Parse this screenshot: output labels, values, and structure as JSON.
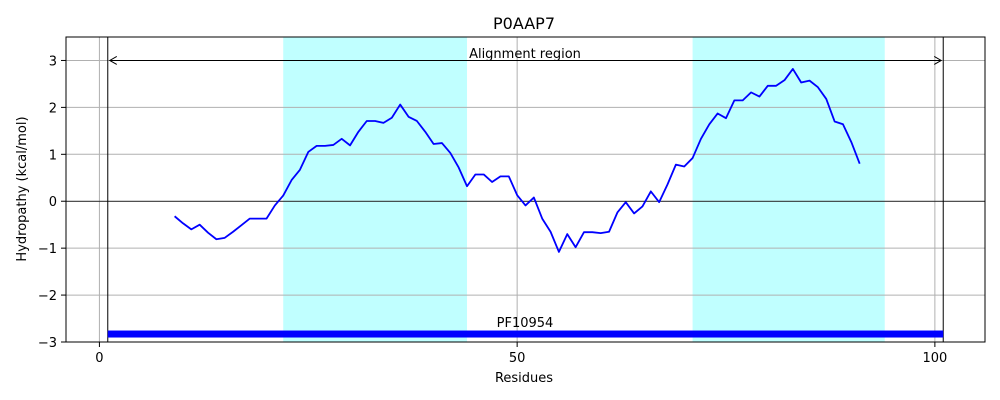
{
  "chart_data": {
    "type": "line",
    "title": "P0AAP7",
    "xlabel": "Residues",
    "ylabel": "Hydropathy (kcal/mol)",
    "xlim": [
      -4,
      106
    ],
    "ylim": [
      -3,
      3.5
    ],
    "x_ticks": [
      0,
      50,
      100
    ],
    "y_ticks": [
      -3,
      -2,
      -1,
      0,
      1,
      2,
      3
    ],
    "grid": true,
    "colors": {
      "line": "#0000ff",
      "shade": "#c0ffff",
      "domain_bar": "#0000ff",
      "zero_line": "#000000",
      "grid": "#b0b0b0"
    },
    "shaded_regions": [
      [
        22,
        44
      ],
      [
        71,
        94
      ]
    ],
    "alignment_region": {
      "label": "Alignment region",
      "start": 1,
      "end": 101,
      "y": 3
    },
    "domain": {
      "label": "PF10954",
      "start": 1,
      "end": 101,
      "y": -2.83
    },
    "series": [
      {
        "x": [
          9,
          10,
          11,
          12,
          13,
          14,
          15,
          16,
          17,
          18,
          19,
          20,
          21,
          22,
          23,
          24,
          25,
          26,
          27,
          28,
          29,
          30,
          31,
          32,
          33,
          34,
          35,
          36,
          37,
          38,
          39,
          40,
          41,
          42,
          43,
          44,
          45,
          46,
          47,
          48,
          49,
          50,
          51,
          52,
          53,
          54,
          55,
          56,
          57,
          58,
          59,
          60,
          61,
          62,
          63,
          64,
          65,
          66,
          67,
          68,
          69,
          70,
          71,
          72,
          73,
          74,
          75,
          76,
          77,
          78,
          79,
          80,
          81,
          82,
          83,
          84,
          85,
          86,
          87,
          88,
          89,
          90,
          91
        ],
        "y": [
          -0.32,
          -0.47,
          -0.6,
          -0.5,
          -0.67,
          -0.81,
          -0.78,
          -0.65,
          -0.51,
          -0.37,
          -0.37,
          -0.37,
          -0.09,
          0.12,
          0.45,
          0.67,
          1.05,
          1.18,
          1.18,
          1.2,
          1.33,
          1.19,
          1.48,
          1.71,
          1.71,
          1.67,
          1.78,
          2.06,
          1.8,
          1.71,
          1.48,
          1.22,
          1.24,
          1.03,
          0.72,
          0.32,
          0.57,
          0.57,
          0.41,
          0.53,
          0.53,
          0.13,
          -0.09,
          0.08,
          -0.37,
          -0.65,
          -1.08,
          -0.7,
          -0.98,
          -0.66,
          -0.66,
          -0.68,
          -0.65,
          -0.24,
          -0.02,
          -0.26,
          -0.11,
          0.21,
          -0.02,
          0.36,
          0.78,
          0.74,
          0.92,
          1.33,
          1.64,
          1.87,
          1.77,
          2.15,
          2.15,
          2.32,
          2.23,
          2.46,
          2.46,
          2.58,
          2.82,
          2.53,
          2.57,
          2.43,
          2.18,
          1.7,
          1.64,
          1.26,
          0.8
        ]
      }
    ]
  }
}
